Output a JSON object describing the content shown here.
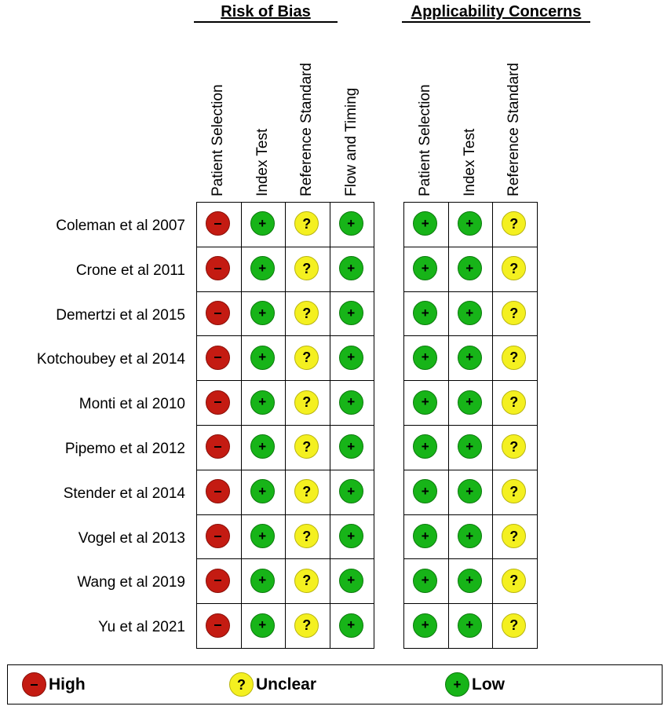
{
  "chart_data": {
    "type": "table",
    "groups": [
      {
        "title": "Risk of Bias",
        "columns": [
          "Patient Selection",
          "Index Test",
          "Reference Standard",
          "Flow and Timing"
        ]
      },
      {
        "title": "Applicability Concerns",
        "columns": [
          "Patient Selection",
          "Index Test",
          "Reference Standard"
        ]
      }
    ],
    "studies": [
      {
        "label": "Coleman et al 2007",
        "risk_of_bias": [
          "high",
          "low",
          "unclear",
          "low"
        ],
        "applicability": [
          "low",
          "low",
          "unclear"
        ]
      },
      {
        "label": "Crone et al 2011",
        "risk_of_bias": [
          "high",
          "low",
          "unclear",
          "low"
        ],
        "applicability": [
          "low",
          "low",
          "unclear"
        ]
      },
      {
        "label": "Demertzi et al 2015",
        "risk_of_bias": [
          "high",
          "low",
          "unclear",
          "low"
        ],
        "applicability": [
          "low",
          "low",
          "unclear"
        ]
      },
      {
        "label": "Kotchoubey et al 2014",
        "risk_of_bias": [
          "high",
          "low",
          "unclear",
          "low"
        ],
        "applicability": [
          "low",
          "low",
          "unclear"
        ]
      },
      {
        "label": "Monti et al 2010",
        "risk_of_bias": [
          "high",
          "low",
          "unclear",
          "low"
        ],
        "applicability": [
          "low",
          "low",
          "unclear"
        ]
      },
      {
        "label": "Pipemo et al 2012",
        "risk_of_bias": [
          "high",
          "low",
          "unclear",
          "low"
        ],
        "applicability": [
          "low",
          "low",
          "unclear"
        ]
      },
      {
        "label": "Stender et al 2014",
        "risk_of_bias": [
          "high",
          "low",
          "unclear",
          "low"
        ],
        "applicability": [
          "low",
          "low",
          "unclear"
        ]
      },
      {
        "label": "Vogel et al 2013",
        "risk_of_bias": [
          "high",
          "low",
          "unclear",
          "low"
        ],
        "applicability": [
          "low",
          "low",
          "unclear"
        ]
      },
      {
        "label": "Wang et al 2019",
        "risk_of_bias": [
          "high",
          "low",
          "unclear",
          "low"
        ],
        "applicability": [
          "low",
          "low",
          "unclear"
        ]
      },
      {
        "label": "Yu et al 2021",
        "risk_of_bias": [
          "high",
          "low",
          "unclear",
          "low"
        ],
        "applicability": [
          "low",
          "low",
          "unclear"
        ]
      }
    ],
    "legend": [
      {
        "key": "high",
        "label": "High",
        "color": "#c41b12"
      },
      {
        "key": "unclear",
        "label": "Unclear",
        "color": "#f4f020"
      },
      {
        "key": "low",
        "label": "Low",
        "color": "#17b418"
      }
    ],
    "legend_placement": "bottom"
  }
}
